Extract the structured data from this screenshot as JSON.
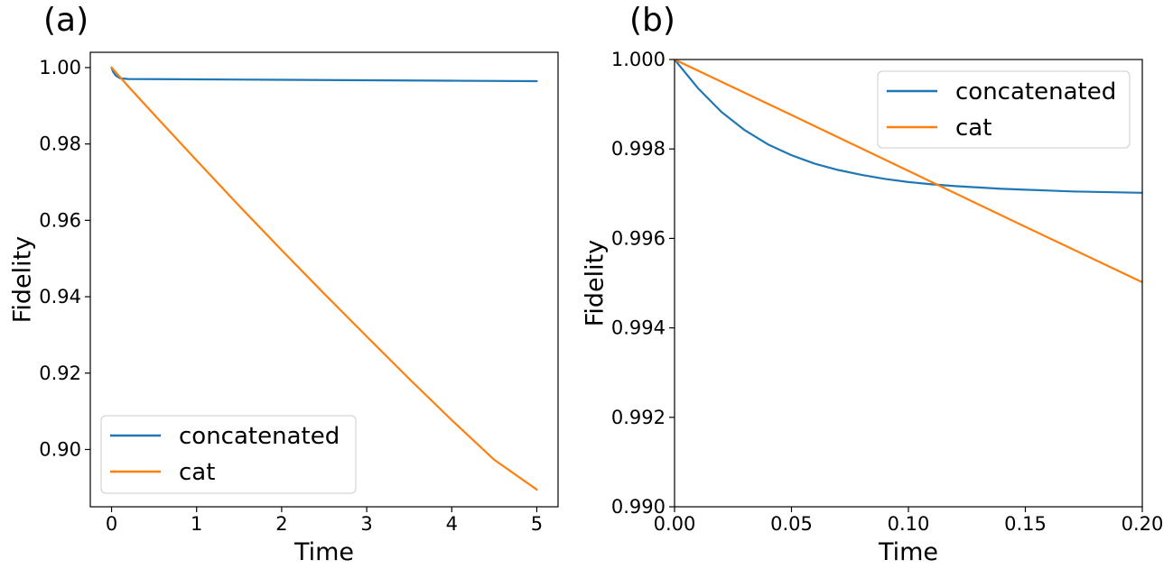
{
  "chart_data": [
    {
      "type": "line",
      "panel_label": "(a)",
      "xlabel": "Time",
      "ylabel": "Fidelity",
      "xlim": [
        -0.25,
        5.25
      ],
      "ylim": [
        0.885,
        1.004
      ],
      "xticks": [
        0,
        1,
        2,
        3,
        4,
        5
      ],
      "xtick_labels": [
        "0",
        "1",
        "2",
        "3",
        "4",
        "5"
      ],
      "yticks": [
        0.9,
        0.92,
        0.94,
        0.96,
        0.98,
        1.0
      ],
      "ytick_labels": [
        "0.90",
        "0.92",
        "0.94",
        "0.96",
        "0.98",
        "1.00"
      ],
      "legend_loc": "lower-left",
      "series": [
        {
          "name": "concatenated",
          "color": "#1f77b4",
          "x": [
            0,
            0.02,
            0.05,
            0.1,
            0.15,
            0.2,
            0.5,
            1,
            2,
            3,
            4,
            5
          ],
          "y": [
            1.0,
            0.9988,
            0.9979,
            0.9972,
            0.9971,
            0.997,
            0.99698,
            0.99692,
            0.9968,
            0.99668,
            0.99656,
            0.99644
          ]
        },
        {
          "name": "cat",
          "color": "#ff7f0e",
          "x": [
            0,
            0.2,
            0.5,
            1,
            1.5,
            2,
            2.5,
            3,
            3.5,
            4,
            4.5,
            5
          ],
          "y": [
            1.0,
            0.995,
            0.9877,
            0.9757,
            0.9638,
            0.9522,
            0.9408,
            0.9296,
            0.9185,
            0.9077,
            0.8973,
            0.8895
          ]
        }
      ]
    },
    {
      "type": "line",
      "panel_label": "(b)",
      "xlabel": "Time",
      "ylabel": "Fidelity",
      "xlim": [
        0.0,
        0.2
      ],
      "ylim": [
        0.99,
        1.0
      ],
      "xticks": [
        0.0,
        0.05,
        0.1,
        0.15,
        0.2
      ],
      "xtick_labels": [
        "0.00",
        "0.05",
        "0.10",
        "0.15",
        "0.20"
      ],
      "yticks": [
        0.99,
        0.992,
        0.994,
        0.996,
        0.998,
        1.0
      ],
      "ytick_labels": [
        "0.990",
        "0.992",
        "0.994",
        "0.996",
        "0.998",
        "1.000"
      ],
      "legend_loc": "upper-right",
      "series": [
        {
          "name": "concatenated",
          "color": "#1f77b4",
          "x": [
            0,
            0.01,
            0.02,
            0.03,
            0.04,
            0.05,
            0.06,
            0.07,
            0.08,
            0.09,
            0.1,
            0.11,
            0.12,
            0.13,
            0.14,
            0.15,
            0.16,
            0.17,
            0.18,
            0.19,
            0.2
          ],
          "y": [
            1.0,
            0.99936,
            0.99883,
            0.99842,
            0.9981,
            0.99786,
            0.99767,
            0.99753,
            0.99742,
            0.99733,
            0.99726,
            0.99721,
            0.99717,
            0.99714,
            0.99711,
            0.99709,
            0.99707,
            0.99705,
            0.99704,
            0.99703,
            0.99702
          ]
        },
        {
          "name": "cat",
          "color": "#ff7f0e",
          "x": [
            0,
            0.05,
            0.1,
            0.15,
            0.2
          ],
          "y": [
            1.0,
            0.99876,
            0.99751,
            0.99626,
            0.99502
          ]
        }
      ]
    }
  ]
}
